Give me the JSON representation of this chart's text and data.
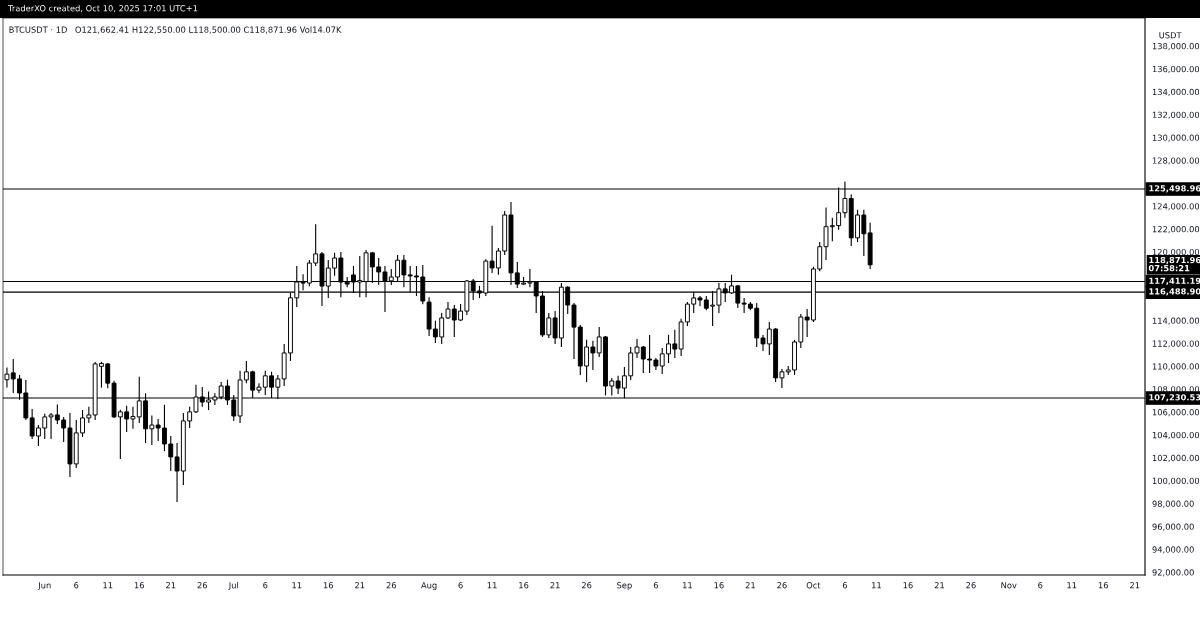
{
  "chart_data": {
    "type": "candlestick",
    "title": "BTCUSDT · 1D",
    "subtitle": "O121,662.41 H122,550.00 L118,500.00 C118,871.96 Vol14.07K",
    "ylabel": "USDT",
    "annotations": [
      "TraderXO created, Oct 10, 2025 17:01 UTC+1",
      "118,871.96\n07:58:21"
    ],
    "x": [
      "2025-05-26",
      "2025-05-27",
      "2025-05-28",
      "2025-05-29",
      "2025-05-30",
      "2025-05-31",
      "2025-06-01",
      "2025-06-02",
      "2025-06-03",
      "2025-06-04",
      "2025-06-05",
      "2025-06-06",
      "2025-06-07",
      "2025-06-08",
      "2025-06-09",
      "2025-06-10",
      "2025-06-11",
      "2025-06-12",
      "2025-06-13",
      "2025-06-14",
      "2025-06-15",
      "2025-06-16",
      "2025-06-17",
      "2025-06-18",
      "2025-06-19",
      "2025-06-20",
      "2025-06-21",
      "2025-06-22",
      "2025-06-23",
      "2025-06-24",
      "2025-06-25",
      "2025-06-26",
      "2025-06-27",
      "2025-06-28",
      "2025-06-29",
      "2025-06-30",
      "2025-07-01",
      "2025-07-02",
      "2025-07-03",
      "2025-07-04",
      "2025-07-05",
      "2025-07-06",
      "2025-07-07",
      "2025-07-08",
      "2025-07-09",
      "2025-07-10",
      "2025-07-11",
      "2025-07-12",
      "2025-07-13",
      "2025-07-14",
      "2025-07-15",
      "2025-07-16",
      "2025-07-17",
      "2025-07-18",
      "2025-07-19",
      "2025-07-20",
      "2025-07-21",
      "2025-07-22",
      "2025-07-23",
      "2025-07-24",
      "2025-07-25",
      "2025-07-26",
      "2025-07-27",
      "2025-07-28",
      "2025-07-29",
      "2025-07-30",
      "2025-07-31",
      "2025-08-01",
      "2025-08-02",
      "2025-08-03",
      "2025-08-04",
      "2025-08-05",
      "2025-08-06",
      "2025-08-07",
      "2025-08-08",
      "2025-08-09",
      "2025-08-10",
      "2025-08-11",
      "2025-08-12",
      "2025-08-13",
      "2025-08-14",
      "2025-08-15",
      "2025-08-16",
      "2025-08-17",
      "2025-08-18",
      "2025-08-19",
      "2025-08-20",
      "2025-08-21",
      "2025-08-22",
      "2025-08-23",
      "2025-08-24",
      "2025-08-25",
      "2025-08-26",
      "2025-08-27",
      "2025-08-28",
      "2025-08-29",
      "2025-08-30",
      "2025-08-31",
      "2025-09-01",
      "2025-09-02",
      "2025-09-03",
      "2025-09-04",
      "2025-09-05",
      "2025-09-06",
      "2025-09-07",
      "2025-09-08",
      "2025-09-09",
      "2025-09-10",
      "2025-09-11",
      "2025-09-12",
      "2025-09-13",
      "2025-09-14",
      "2025-09-15",
      "2025-09-16",
      "2025-09-17",
      "2025-09-18",
      "2025-09-19",
      "2025-09-20",
      "2025-09-21",
      "2025-09-22",
      "2025-09-23",
      "2025-09-24",
      "2025-09-25",
      "2025-09-26",
      "2025-09-27",
      "2025-09-28",
      "2025-09-29",
      "2025-09-30",
      "2025-10-01",
      "2025-10-02",
      "2025-10-03",
      "2025-10-04",
      "2025-10-05",
      "2025-10-06",
      "2025-10-07",
      "2025-10-08",
      "2025-10-09",
      "2025-10-10"
    ],
    "series": [
      {
        "color": "#000000",
        "ohlc": [
          [
            108830,
            109900,
            108140,
            109320
          ],
          [
            109430,
            110650,
            107670,
            108900
          ],
          [
            108900,
            109250,
            107070,
            107670
          ],
          [
            107670,
            108810,
            105310,
            105490
          ],
          [
            105490,
            106280,
            103650,
            103910
          ],
          [
            103910,
            104880,
            103030,
            104610
          ],
          [
            104610,
            105850,
            103650,
            105580
          ],
          [
            105580,
            105930,
            103650,
            105750
          ],
          [
            105750,
            106660,
            104960,
            105310
          ],
          [
            105310,
            105580,
            103380,
            104610
          ],
          [
            104610,
            105930,
            100330,
            101470
          ],
          [
            101470,
            105310,
            101110,
            104180
          ],
          [
            104180,
            106190,
            103830,
            105490
          ],
          [
            105490,
            106460,
            105050,
            105750
          ],
          [
            105750,
            110390,
            105310,
            110210
          ],
          [
            110000,
            110400,
            108140,
            110250
          ],
          [
            110210,
            110300,
            108090,
            108530
          ],
          [
            108530,
            108730,
            105490,
            105580
          ],
          [
            105580,
            106200,
            101890,
            106020
          ],
          [
            106020,
            106550,
            104260,
            105400
          ],
          [
            105400,
            106460,
            104540,
            105610
          ],
          [
            105580,
            109080,
            105050,
            106980
          ],
          [
            106980,
            107650,
            103300,
            104540
          ],
          [
            104540,
            105700,
            103120,
            104870
          ],
          [
            104870,
            105400,
            103470,
            104610
          ],
          [
            104610,
            106640,
            102590,
            103210
          ],
          [
            103210,
            103920,
            100850,
            102080
          ],
          [
            102080,
            103300,
            98140,
            100850
          ],
          [
            100850,
            105930,
            99630,
            105230
          ],
          [
            105230,
            106460,
            104610,
            106020
          ],
          [
            106020,
            108380,
            105930,
            107320
          ],
          [
            107320,
            108200,
            106460,
            106880
          ],
          [
            106880,
            107810,
            106190,
            107060
          ],
          [
            107060,
            107650,
            106630,
            107320
          ],
          [
            107320,
            108640,
            107130,
            108280
          ],
          [
            108280,
            108830,
            106630,
            107060
          ],
          [
            107060,
            107500,
            105220,
            105660
          ],
          [
            105660,
            109620,
            105050,
            108810
          ],
          [
            108810,
            110460,
            108530,
            109520
          ],
          [
            109520,
            109620,
            107230,
            107920
          ],
          [
            107920,
            108530,
            107670,
            108180
          ],
          [
            108180,
            109620,
            107500,
            109170
          ],
          [
            109170,
            109520,
            107230,
            108180
          ],
          [
            108180,
            109250,
            107150,
            108900
          ],
          [
            108900,
            111960,
            108280,
            111170
          ],
          [
            111170,
            116440,
            110470,
            115990
          ],
          [
            115990,
            118780,
            115190,
            117370
          ],
          [
            117370,
            118060,
            116660,
            117280
          ],
          [
            117280,
            119300,
            117010,
            119030
          ],
          [
            119030,
            122410,
            118770,
            119830
          ],
          [
            119830,
            120000,
            115270,
            117020
          ],
          [
            117020,
            119300,
            115980,
            118590
          ],
          [
            118590,
            119920,
            117910,
            119470
          ],
          [
            119470,
            120000,
            116050,
            117370
          ],
          [
            117370,
            117810,
            116920,
            117190
          ],
          [
            117990,
            118770,
            116410,
            117370
          ],
          [
            117370,
            119650,
            116050,
            117510
          ],
          [
            117410,
            120180,
            116050,
            119920
          ],
          [
            119920,
            120000,
            117280,
            118690
          ],
          [
            118690,
            119470,
            117100,
            118250
          ],
          [
            118250,
            118770,
            114750,
            117470
          ],
          [
            117470,
            118500,
            117100,
            117810
          ],
          [
            117810,
            119740,
            117370,
            119280
          ],
          [
            119280,
            119740,
            116920,
            117990
          ],
          [
            117990,
            118770,
            116470,
            117900
          ],
          [
            117900,
            118770,
            116150,
            117810
          ],
          [
            117810,
            118860,
            115430,
            115710
          ],
          [
            115620,
            116050,
            112650,
            113260
          ],
          [
            113260,
            113980,
            112040,
            112570
          ],
          [
            112570,
            114660,
            111950,
            114230
          ],
          [
            114230,
            115620,
            114140,
            115010
          ],
          [
            115010,
            115360,
            112570,
            114050
          ],
          [
            114050,
            115450,
            113960,
            114830
          ],
          [
            114830,
            117550,
            114480,
            117460
          ],
          [
            117460,
            117640,
            115800,
            116590
          ],
          [
            116590,
            117040,
            115960,
            116410
          ],
          [
            116410,
            119370,
            116150,
            119200
          ],
          [
            119200,
            122280,
            118160,
            118600
          ],
          [
            118600,
            120350,
            118010,
            120080
          ],
          [
            120080,
            123580,
            119740,
            123230
          ],
          [
            123230,
            124370,
            117100,
            118170
          ],
          [
            118170,
            119120,
            116840,
            117190
          ],
          [
            117190,
            117810,
            117100,
            117280
          ],
          [
            117280,
            118500,
            116920,
            117370
          ],
          [
            117370,
            117460,
            114660,
            116150
          ],
          [
            116150,
            116590,
            112570,
            112750
          ],
          [
            112750,
            114660,
            112480,
            114230
          ],
          [
            114230,
            114840,
            111950,
            112480
          ],
          [
            112480,
            117280,
            111690,
            116920
          ],
          [
            116920,
            117010,
            114570,
            115360
          ],
          [
            115360,
            115540,
            110640,
            113430
          ],
          [
            113430,
            113620,
            109250,
            110030
          ],
          [
            110030,
            112320,
            108630,
            111690
          ],
          [
            111690,
            112230,
            109680,
            111170
          ],
          [
            111170,
            113430,
            110820,
            112570
          ],
          [
            112570,
            112650,
            107450,
            108280
          ],
          [
            108280,
            108990,
            107450,
            108720
          ],
          [
            108720,
            109170,
            107580,
            108100
          ],
          [
            108100,
            109950,
            107220,
            109170
          ],
          [
            109170,
            111690,
            108810,
            111170
          ],
          [
            111170,
            112400,
            110730,
            111690
          ],
          [
            111690,
            111780,
            109420,
            110640
          ],
          [
            110640,
            112750,
            109420,
            110550
          ],
          [
            110550,
            110730,
            109680,
            110030
          ],
          [
            110030,
            111600,
            109330,
            111090
          ],
          [
            111090,
            112750,
            110290,
            111960
          ],
          [
            111960,
            113190,
            110730,
            111510
          ],
          [
            111510,
            114150,
            110910,
            113880
          ],
          [
            113880,
            115620,
            113520,
            115440
          ],
          [
            115440,
            116510,
            114660,
            115980
          ],
          [
            115980,
            116150,
            115260,
            115800
          ],
          [
            115800,
            116150,
            114910,
            115080
          ],
          [
            115260,
            116590,
            113520,
            115350
          ],
          [
            115350,
            117280,
            114660,
            116770
          ],
          [
            116770,
            117280,
            115620,
            116420
          ],
          [
            116420,
            118010,
            116330,
            117030
          ],
          [
            117030,
            117120,
            115090,
            115530
          ],
          [
            115530,
            115980,
            114660,
            115440
          ],
          [
            115440,
            115620,
            114910,
            115080
          ],
          [
            115080,
            115530,
            111690,
            112480
          ],
          [
            112480,
            112750,
            111340,
            111960
          ],
          [
            111960,
            113880,
            110990,
            113260
          ],
          [
            113260,
            113350,
            108630,
            108990
          ],
          [
            108990,
            109770,
            108100,
            109520
          ],
          [
            109520,
            110030,
            109250,
            109680
          ],
          [
            109680,
            112320,
            109250,
            112130
          ],
          [
            112130,
            114570,
            111600,
            114310
          ],
          [
            114310,
            115010,
            112570,
            114050
          ],
          [
            114050,
            118700,
            113880,
            118510
          ],
          [
            118510,
            120870,
            118320,
            120460
          ],
          [
            120460,
            123880,
            119300,
            122210
          ],
          [
            122210,
            122990,
            120940,
            122300
          ],
          [
            122300,
            125630,
            121940,
            123430
          ],
          [
            123430,
            126150,
            122990,
            124670
          ],
          [
            124670,
            125030,
            120520,
            121230
          ],
          [
            121230,
            123690,
            120870,
            123230
          ],
          [
            123230,
            123690,
            119650,
            121590
          ],
          [
            121662.41,
            122550.0,
            118500.0,
            118871.96
          ]
        ]
      }
    ],
    "ref_lines": [
      {
        "axis": "y",
        "value": 125498.96,
        "label": "125,498.96",
        "color": "#000000"
      },
      {
        "axis": "y",
        "value": 117411.19,
        "label": "117,411.19",
        "color": "#000000"
      },
      {
        "axis": "y",
        "value": 116488.9,
        "label": "116,488.90",
        "color": "#000000"
      },
      {
        "axis": "y",
        "value": 107230.53,
        "label": "107,230.53",
        "color": "#000000"
      }
    ],
    "xlim": [
      "2025-05-25T09:00",
      "2025-11-22T15:00"
    ],
    "xticks": [
      {
        "value": "2025-06-01",
        "label": "Jun"
      },
      {
        "value": "2025-06-06",
        "label": "6"
      },
      {
        "value": "2025-06-11",
        "label": "11"
      },
      {
        "value": "2025-06-16",
        "label": "16"
      },
      {
        "value": "2025-06-21",
        "label": "21"
      },
      {
        "value": "2025-06-26",
        "label": "26"
      },
      {
        "value": "2025-07-01",
        "label": "Jul"
      },
      {
        "value": "2025-07-06",
        "label": "6"
      },
      {
        "value": "2025-07-11",
        "label": "11"
      },
      {
        "value": "2025-07-16",
        "label": "16"
      },
      {
        "value": "2025-07-21",
        "label": "21"
      },
      {
        "value": "2025-07-26",
        "label": "26"
      },
      {
        "value": "2025-08-01",
        "label": "Aug"
      },
      {
        "value": "2025-08-06",
        "label": "6"
      },
      {
        "value": "2025-08-11",
        "label": "11"
      },
      {
        "value": "2025-08-16",
        "label": "16"
      },
      {
        "value": "2025-08-21",
        "label": "21"
      },
      {
        "value": "2025-08-26",
        "label": "26"
      },
      {
        "value": "2025-09-01",
        "label": "Sep"
      },
      {
        "value": "2025-09-06",
        "label": "6"
      },
      {
        "value": "2025-09-11",
        "label": "11"
      },
      {
        "value": "2025-09-16",
        "label": "16"
      },
      {
        "value": "2025-09-21",
        "label": "21"
      },
      {
        "value": "2025-09-26",
        "label": "26"
      },
      {
        "value": "2025-10-01",
        "label": "Oct"
      },
      {
        "value": "2025-10-06",
        "label": "6"
      },
      {
        "value": "2025-10-11",
        "label": "11"
      },
      {
        "value": "2025-10-16",
        "label": "16"
      },
      {
        "value": "2025-10-21",
        "label": "21"
      },
      {
        "value": "2025-10-26",
        "label": "26"
      },
      {
        "value": "2025-11-01",
        "label": "Nov"
      },
      {
        "value": "2025-11-06",
        "label": "6"
      },
      {
        "value": "2025-11-11",
        "label": "11"
      },
      {
        "value": "2025-11-16",
        "label": "16"
      },
      {
        "value": "2025-11-21",
        "label": "21"
      }
    ],
    "ylim": [
      91760,
      140450
    ],
    "yticks": [
      {
        "value": 92000,
        "label": "92,000.00"
      },
      {
        "value": 94000,
        "label": "94,000.00"
      },
      {
        "value": 96000,
        "label": "96,000.00"
      },
      {
        "value": 98000,
        "label": "98,000.00"
      },
      {
        "value": 100000,
        "label": "100,000.00"
      },
      {
        "value": 102000,
        "label": "102,000.00"
      },
      {
        "value": 104000,
        "label": "104,000.00"
      },
      {
        "value": 106000,
        "label": "106,000.00"
      },
      {
        "value": 108000,
        "label": "108,000.00"
      },
      {
        "value": 110000,
        "label": "110,000.00"
      },
      {
        "value": 112000,
        "label": "112,000.00"
      },
      {
        "value": 114000,
        "label": "114,000.00"
      },
      {
        "value": 120000,
        "label": "120,000.00"
      },
      {
        "value": 122000,
        "label": "122,000.00"
      },
      {
        "value": 124000,
        "label": "124,000.00"
      },
      {
        "value": 128000,
        "label": "128,000.00"
      },
      {
        "value": 130000,
        "label": "130,000.00"
      },
      {
        "value": 132000,
        "label": "132,000.00"
      },
      {
        "value": 134000,
        "label": "134,000.00"
      },
      {
        "value": 136000,
        "label": "136,000.00"
      },
      {
        "value": 138000,
        "label": "138,000.00"
      }
    ],
    "grid": false
  }
}
